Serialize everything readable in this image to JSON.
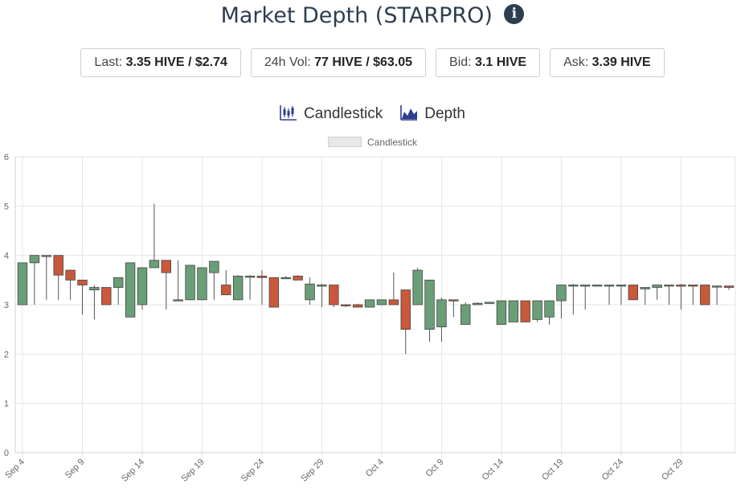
{
  "header": {
    "title": "Market Depth (STARPRO)",
    "info_icon": "info-circle-icon"
  },
  "stats": [
    {
      "label": "Last: ",
      "value": "3.35 HIVE / $2.74"
    },
    {
      "label": "24h Vol: ",
      "value": "77 HIVE / $63.05"
    },
    {
      "label": "Bid: ",
      "value": "3.1 HIVE"
    },
    {
      "label": "Ask: ",
      "value": "3.39 HIVE"
    }
  ],
  "tabs": [
    {
      "label": "Candlestick",
      "icon": "candlestick-chart-icon"
    },
    {
      "label": "Depth",
      "icon": "depth-chart-icon"
    }
  ],
  "colors": {
    "up": "#6a9e77",
    "down": "#c9593b",
    "wick": "#555555",
    "grid": "#e6e6e6"
  },
  "chart_data": {
    "type": "candlestick",
    "legend": [
      "Candlestick"
    ],
    "legend_position": "top-center",
    "grid": true,
    "ylim": [
      0,
      6
    ],
    "yticks": [
      0,
      1,
      2,
      3,
      4,
      5,
      6
    ],
    "xlim": [
      "Sep 4",
      "Nov 2"
    ],
    "xticks": [
      "Sep 4",
      "Sep 9",
      "Sep 14",
      "Sep 19",
      "Sep 24",
      "Sep 29",
      "Oct 4",
      "Oct 9",
      "Oct 14",
      "Oct 19",
      "Oct 24",
      "Oct 29"
    ],
    "series": [
      {
        "candles": [
          {
            "date": "Sep 4",
            "open": 3.0,
            "close": 3.85,
            "high": 3.85,
            "low": 3.0
          },
          {
            "date": "Sep 5",
            "open": 3.85,
            "close": 4.0,
            "high": 4.0,
            "low": 3.0
          },
          {
            "date": "Sep 6",
            "open": 3.98,
            "close": 4.0,
            "high": 4.0,
            "low": 3.1
          },
          {
            "date": "Sep 7",
            "open": 4.0,
            "close": 3.6,
            "high": 4.0,
            "low": 3.1
          },
          {
            "date": "Sep 8",
            "open": 3.7,
            "close": 3.5,
            "high": 3.7,
            "low": 3.1
          },
          {
            "date": "Sep 9",
            "open": 3.5,
            "close": 3.4,
            "high": 3.5,
            "low": 2.8
          },
          {
            "date": "Sep 10",
            "open": 3.3,
            "close": 3.35,
            "high": 3.4,
            "low": 2.7
          },
          {
            "date": "Sep 11",
            "open": 3.35,
            "close": 3.0,
            "high": 3.35,
            "low": 3.0
          },
          {
            "date": "Sep 12",
            "open": 3.35,
            "close": 3.55,
            "high": 3.55,
            "low": 3.0
          },
          {
            "date": "Sep 13",
            "open": 2.75,
            "close": 3.85,
            "high": 3.85,
            "low": 2.75
          },
          {
            "date": "Sep 14",
            "open": 3.0,
            "close": 3.75,
            "high": 3.75,
            "low": 2.9
          },
          {
            "date": "Sep 15",
            "open": 3.75,
            "close": 3.9,
            "high": 5.05,
            "low": 3.75
          },
          {
            "date": "Sep 16",
            "open": 3.9,
            "close": 3.65,
            "high": 3.9,
            "low": 2.9
          },
          {
            "date": "Sep 17",
            "open": 3.1,
            "close": 3.1,
            "high": 3.9,
            "low": 3.1
          },
          {
            "date": "Sep 18",
            "open": 3.1,
            "close": 3.8,
            "high": 3.8,
            "low": 3.1
          },
          {
            "date": "Sep 19",
            "open": 3.1,
            "close": 3.75,
            "high": 3.75,
            "low": 3.1
          },
          {
            "date": "Sep 20",
            "open": 3.65,
            "close": 3.88,
            "high": 3.88,
            "low": 3.1
          },
          {
            "date": "Sep 21",
            "open": 3.4,
            "close": 3.2,
            "high": 3.7,
            "low": 3.2
          },
          {
            "date": "Sep 22",
            "open": 3.1,
            "close": 3.58,
            "high": 3.6,
            "low": 3.1
          },
          {
            "date": "Sep 23",
            "open": 3.58,
            "close": 3.58,
            "high": 3.6,
            "low": 3.1
          },
          {
            "date": "Sep 24",
            "open": 3.58,
            "close": 3.55,
            "high": 3.7,
            "low": 3.0
          },
          {
            "date": "Sep 25",
            "open": 3.55,
            "close": 2.95,
            "high": 3.55,
            "low": 2.95
          },
          {
            "date": "Sep 26",
            "open": 3.55,
            "close": 3.55,
            "high": 3.58,
            "low": 3.55
          },
          {
            "date": "Sep 27",
            "open": 3.58,
            "close": 3.5,
            "high": 3.6,
            "low": 3.5
          },
          {
            "date": "Sep 28",
            "open": 3.1,
            "close": 3.42,
            "high": 3.55,
            "low": 3.0
          },
          {
            "date": "Sep 29",
            "open": 3.4,
            "close": 3.4,
            "high": 3.42,
            "low": 2.95
          },
          {
            "date": "Sep 30",
            "open": 3.4,
            "close": 3.0,
            "high": 3.4,
            "low": 2.95
          },
          {
            "date": "Oct 1",
            "open": 3.0,
            "close": 2.98,
            "high": 3.0,
            "low": 2.95
          },
          {
            "date": "Oct 2",
            "open": 3.0,
            "close": 2.95,
            "high": 3.02,
            "low": 2.95
          },
          {
            "date": "Oct 3",
            "open": 2.95,
            "close": 3.1,
            "high": 3.1,
            "low": 2.95
          },
          {
            "date": "Oct 4",
            "open": 3.0,
            "close": 3.1,
            "high": 3.1,
            "low": 3.0
          },
          {
            "date": "Oct 5",
            "open": 3.1,
            "close": 3.0,
            "high": 3.65,
            "low": 3.0
          },
          {
            "date": "Oct 6",
            "open": 3.3,
            "close": 2.5,
            "high": 3.3,
            "low": 2.0
          },
          {
            "date": "Oct 7",
            "open": 3.0,
            "close": 3.7,
            "high": 3.75,
            "low": 3.0
          },
          {
            "date": "Oct 8",
            "open": 2.5,
            "close": 3.5,
            "high": 3.5,
            "low": 2.25
          },
          {
            "date": "Oct 9",
            "open": 2.55,
            "close": 3.1,
            "high": 3.15,
            "low": 2.25
          },
          {
            "date": "Oct 10",
            "open": 3.1,
            "close": 3.08,
            "high": 3.1,
            "low": 2.75
          },
          {
            "date": "Oct 11",
            "open": 2.6,
            "close": 3.0,
            "high": 3.05,
            "low": 2.6
          },
          {
            "date": "Oct 12",
            "open": 3.0,
            "close": 3.03,
            "high": 3.05,
            "low": 3.0
          },
          {
            "date": "Oct 13",
            "open": 3.03,
            "close": 3.05,
            "high": 3.06,
            "low": 3.02
          },
          {
            "date": "Oct 14",
            "open": 2.6,
            "close": 3.08,
            "high": 3.08,
            "low": 2.6
          },
          {
            "date": "Oct 15",
            "open": 2.65,
            "close": 3.08,
            "high": 3.08,
            "low": 2.65
          },
          {
            "date": "Oct 16",
            "open": 3.08,
            "close": 2.65,
            "high": 3.08,
            "low": 2.65
          },
          {
            "date": "Oct 17",
            "open": 2.7,
            "close": 3.08,
            "high": 3.08,
            "low": 2.65
          },
          {
            "date": "Oct 18",
            "open": 2.75,
            "close": 3.08,
            "high": 3.08,
            "low": 2.6
          },
          {
            "date": "Oct 19",
            "open": 3.08,
            "close": 3.4,
            "high": 3.4,
            "low": 2.72
          },
          {
            "date": "Oct 20",
            "open": 3.38,
            "close": 3.4,
            "high": 3.42,
            "low": 2.8
          },
          {
            "date": "Oct 21",
            "open": 3.38,
            "close": 3.4,
            "high": 3.4,
            "low": 2.9
          },
          {
            "date": "Oct 22",
            "open": 3.38,
            "close": 3.4,
            "high": 3.4,
            "low": 3.38
          },
          {
            "date": "Oct 23",
            "open": 3.38,
            "close": 3.4,
            "high": 3.4,
            "low": 3.0
          },
          {
            "date": "Oct 24",
            "open": 3.38,
            "close": 3.4,
            "high": 3.4,
            "low": 3.0
          },
          {
            "date": "Oct 25",
            "open": 3.4,
            "close": 3.1,
            "high": 3.4,
            "low": 3.1
          },
          {
            "date": "Oct 26",
            "open": 3.32,
            "close": 3.35,
            "high": 3.35,
            "low": 3.0
          },
          {
            "date": "Oct 27",
            "open": 3.35,
            "close": 3.4,
            "high": 3.4,
            "low": 3.1
          },
          {
            "date": "Oct 28",
            "open": 3.38,
            "close": 3.4,
            "high": 3.4,
            "low": 3.0
          },
          {
            "date": "Oct 29",
            "open": 3.4,
            "close": 3.38,
            "high": 3.42,
            "low": 2.9
          },
          {
            "date": "Oct 30",
            "open": 3.4,
            "close": 3.38,
            "high": 3.4,
            "low": 3.0
          },
          {
            "date": "Oct 31",
            "open": 3.4,
            "close": 3.0,
            "high": 3.4,
            "low": 3.0
          },
          {
            "date": "Nov 1",
            "open": 3.36,
            "close": 3.38,
            "high": 3.38,
            "low": 3.0
          },
          {
            "date": "Nov 2",
            "open": 3.38,
            "close": 3.35,
            "high": 3.38,
            "low": 3.3
          }
        ]
      }
    ]
  }
}
